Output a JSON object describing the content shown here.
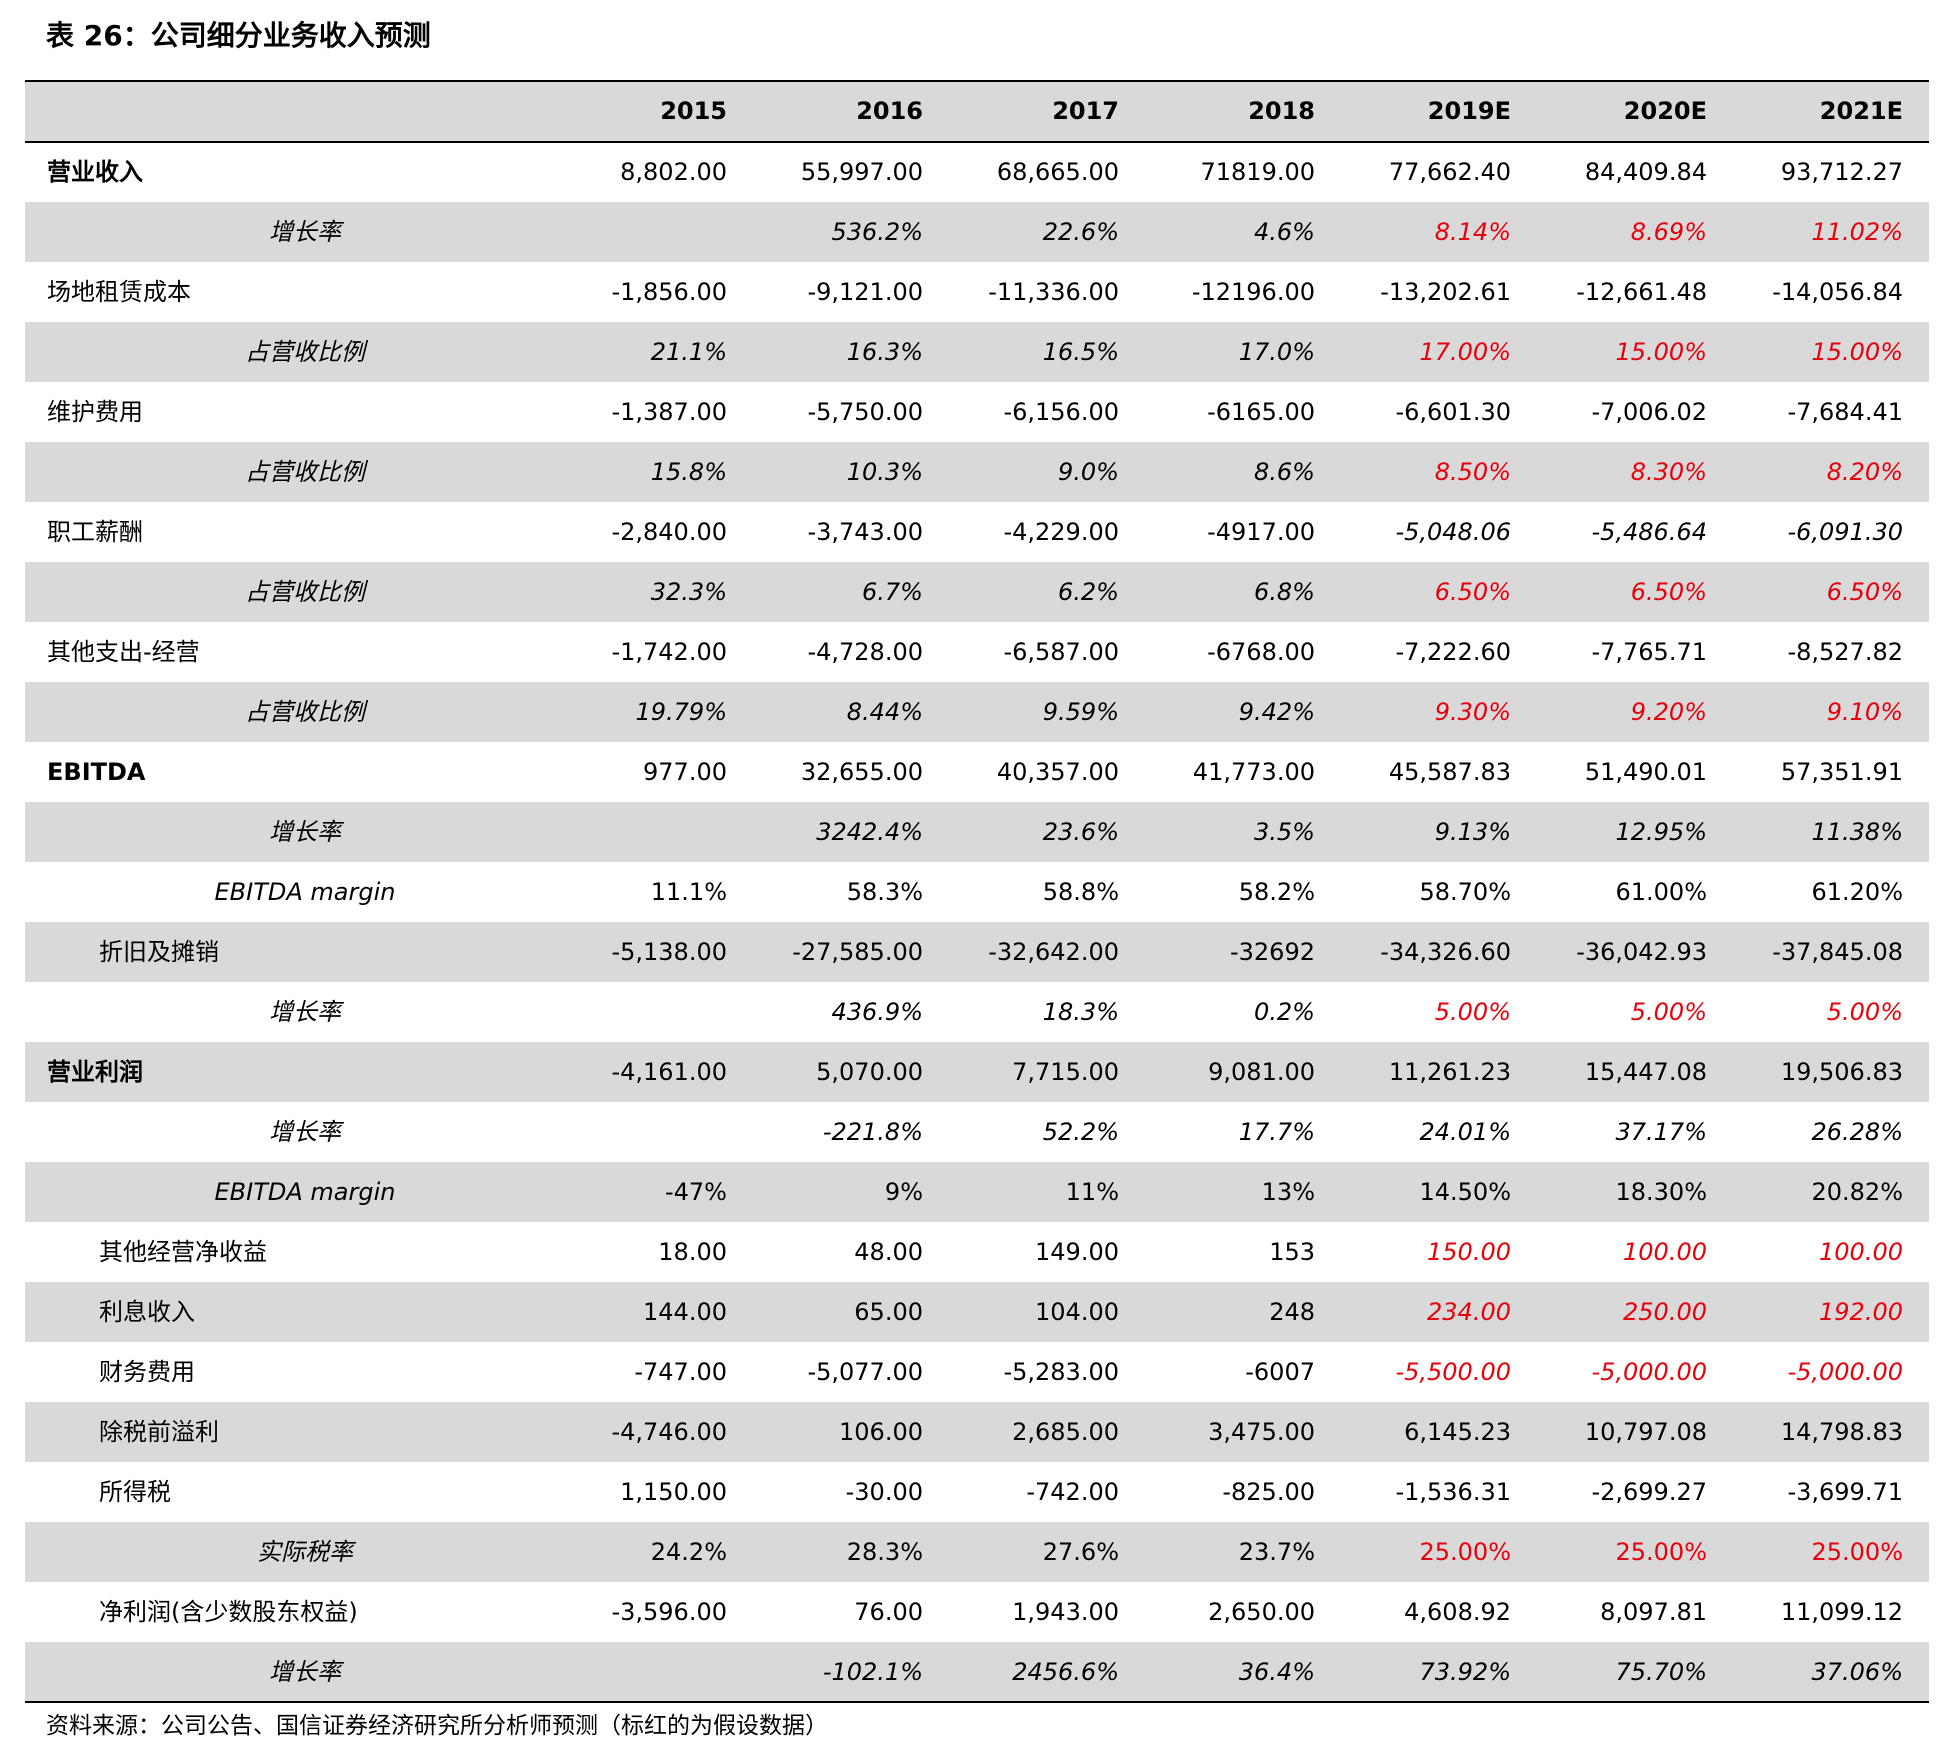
{
  "title": "表 26：公司细分业务收入预测",
  "table": {
    "columns": [
      "2015",
      "2016",
      "2017",
      "2018",
      "2019E",
      "2020E",
      "2021E"
    ],
    "rows": [
      {
        "label": "营业收入",
        "values": [
          "8,802.00",
          "55,997.00",
          "68,665.00",
          "71819.00",
          "77,662.40",
          "84,409.84",
          "93,712.27"
        ]
      },
      {
        "label": "增长率",
        "values": [
          null,
          "536.2%",
          "22.6%",
          "4.6%",
          "8.14%",
          "8.69%",
          "11.02%"
        ]
      },
      {
        "label": "场地租赁成本",
        "values": [
          "-1,856.00",
          "-9,121.00",
          "-11,336.00",
          "-12196.00",
          "-13,202.61",
          "-12,661.48",
          "-14,056.84"
        ]
      },
      {
        "label": "占营收比例",
        "values": [
          "21.1%",
          "16.3%",
          "16.5%",
          "17.0%",
          "17.00%",
          "15.00%",
          "15.00%"
        ]
      },
      {
        "label": "维护费用",
        "values": [
          "-1,387.00",
          "-5,750.00",
          "-6,156.00",
          "-6165.00",
          "-6,601.30",
          "-7,006.02",
          "-7,684.41"
        ]
      },
      {
        "label": "占营收比例",
        "values": [
          "15.8%",
          "10.3%",
          "9.0%",
          "8.6%",
          "8.50%",
          "8.30%",
          "8.20%"
        ]
      },
      {
        "label": "职工薪酬",
        "values": [
          "-2,840.00",
          "-3,743.00",
          "-4,229.00",
          "-4917.00",
          "-5,048.06",
          "-5,486.64",
          "-6,091.30"
        ]
      },
      {
        "label": "占营收比例",
        "values": [
          "32.3%",
          "6.7%",
          "6.2%",
          "6.8%",
          "6.50%",
          "6.50%",
          "6.50%"
        ]
      },
      {
        "label": "其他支出-经营",
        "values": [
          "-1,742.00",
          "-4,728.00",
          "-6,587.00",
          "-6768.00",
          "-7,222.60",
          "-7,765.71",
          "-8,527.82"
        ]
      },
      {
        "label": "占营收比例",
        "values": [
          "19.79%",
          "8.44%",
          "9.59%",
          "9.42%",
          "9.30%",
          "9.20%",
          "9.10%"
        ]
      },
      {
        "label": "EBITDA",
        "values": [
          "977.00",
          "32,655.00",
          "40,357.00",
          "41,773.00",
          "45,587.83",
          "51,490.01",
          "57,351.91"
        ]
      },
      {
        "label": "增长率",
        "values": [
          null,
          "3242.4%",
          "23.6%",
          "3.5%",
          "9.13%",
          "12.95%",
          "11.38%"
        ]
      },
      {
        "label": "EBITDA margin",
        "values": [
          "11.1%",
          "58.3%",
          "58.8%",
          "58.2%",
          "58.70%",
          "61.00%",
          "61.20%"
        ]
      },
      {
        "label": "折旧及摊销",
        "values": [
          "-5,138.00",
          "-27,585.00",
          "-32,642.00",
          "-32692",
          "-34,326.60",
          "-36,042.93",
          "-37,845.08"
        ]
      },
      {
        "label": "增长率",
        "values": [
          null,
          "436.9%",
          "18.3%",
          "0.2%",
          "5.00%",
          "5.00%",
          "5.00%"
        ]
      },
      {
        "label": "营业利润",
        "values": [
          "-4,161.00",
          "5,070.00",
          "7,715.00",
          "9,081.00",
          "11,261.23",
          "15,447.08",
          "19,506.83"
        ]
      },
      {
        "label": "增长率",
        "values": [
          null,
          "-221.8%",
          "52.2%",
          "17.7%",
          "24.01%",
          "37.17%",
          "26.28%"
        ]
      },
      {
        "label": "EBITDA margin",
        "values": [
          "-47%",
          "9%",
          "11%",
          "13%",
          "14.50%",
          "18.30%",
          "20.82%"
        ]
      },
      {
        "label": "其他经营净收益",
        "values": [
          "18.00",
          "48.00",
          "149.00",
          "153",
          "150.00",
          "100.00",
          "100.00"
        ]
      },
      {
        "label": "利息收入",
        "values": [
          "144.00",
          "65.00",
          "104.00",
          "248",
          "234.00",
          "250.00",
          "192.00"
        ]
      },
      {
        "label": "财务费用",
        "values": [
          "-747.00",
          "-5,077.00",
          "-5,283.00",
          "-6007",
          "-5,500.00",
          "-5,000.00",
          "-5,000.00"
        ]
      },
      {
        "label": "除税前溢利",
        "values": [
          "-4,746.00",
          "106.00",
          "2,685.00",
          "3,475.00",
          "6,145.23",
          "10,797.08",
          "14,798.83"
        ]
      },
      {
        "label": "所得税",
        "values": [
          "1,150.00",
          "-30.00",
          "-742.00",
          "-825.00",
          "-1,536.31",
          "-2,699.27",
          "-3,699.71"
        ]
      },
      {
        "label": "实际税率",
        "values": [
          "24.2%",
          "28.3%",
          "27.6%",
          "23.7%",
          "25.00%",
          "25.00%",
          "25.00%"
        ]
      },
      {
        "label": "净利润(含少数股东权益)",
        "values": [
          "-3,596.00",
          "76.00",
          "1,943.00",
          "2,650.00",
          "4,608.92",
          "8,097.81",
          "11,099.12"
        ]
      },
      {
        "label": "增长率",
        "values": [
          null,
          "-102.1%",
          "2456.6%",
          "36.4%",
          "73.92%",
          "75.70%",
          "37.06%"
        ]
      }
    ]
  },
  "source": "资料来源：公司公告、国信证券经济研究所分析师预测（标红的为假设数据）"
}
